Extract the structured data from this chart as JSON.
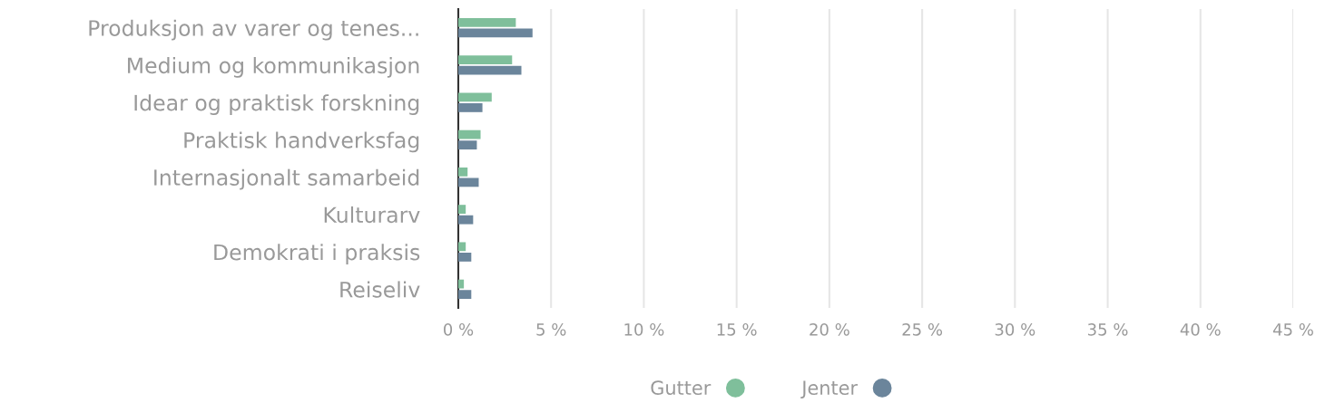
{
  "chart_data": {
    "type": "bar",
    "orientation": "horizontal",
    "categories": [
      "Produksjon av varer og tenes...",
      "Medium og kommunikasjon",
      "Idear og praktisk forskning",
      "Praktisk handverksfag",
      "Internasjonalt samarbeid",
      "Kulturarv",
      "Demokrati i praksis",
      "Reiseliv"
    ],
    "series": [
      {
        "name": "Gutter",
        "color": "#7fbf9b",
        "values": [
          3.1,
          2.9,
          1.8,
          1.2,
          0.5,
          0.4,
          0.4,
          0.3
        ]
      },
      {
        "name": "Jenter",
        "color": "#6b859b",
        "values": [
          4.0,
          3.4,
          1.3,
          1.0,
          1.1,
          0.8,
          0.7,
          0.7
        ]
      }
    ],
    "xlim": [
      0,
      45
    ],
    "xticks": [
      {
        "value": 0,
        "label": "0 %"
      },
      {
        "value": 5,
        "label": "5 %"
      },
      {
        "value": 10,
        "label": "10 %"
      },
      {
        "value": 15,
        "label": "15 %"
      },
      {
        "value": 20,
        "label": "20 %"
      },
      {
        "value": 25,
        "label": "25 %"
      },
      {
        "value": 30,
        "label": "30 %"
      },
      {
        "value": 35,
        "label": "35 %"
      },
      {
        "value": 40,
        "label": "40 %"
      },
      {
        "value": 45,
        "label": "45 %"
      }
    ],
    "grid": "x",
    "legend": "bottom"
  }
}
